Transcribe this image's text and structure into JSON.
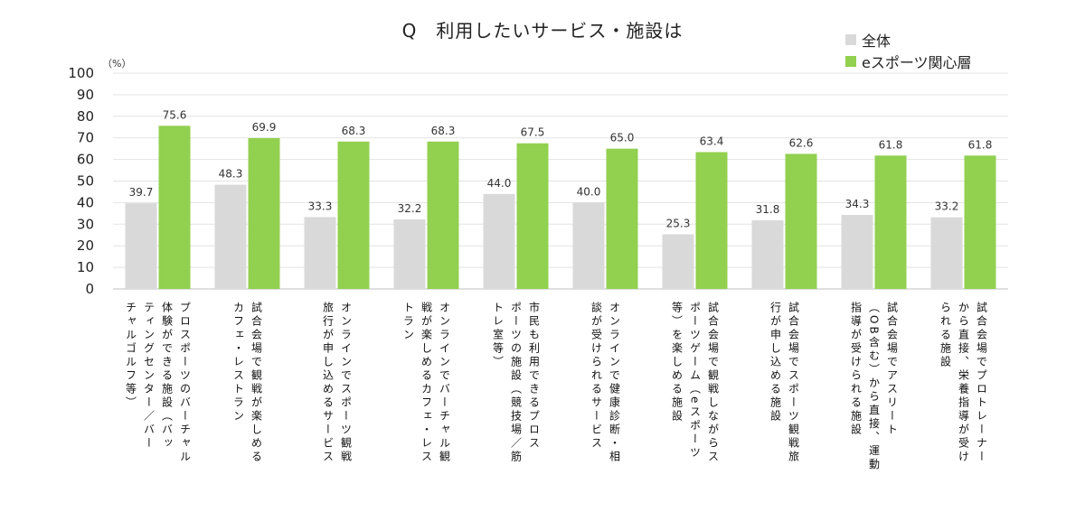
{
  "title": "Q　利用したいサービス・施設は",
  "unit": "（%）",
  "legend": [
    {
      "label": "全体",
      "color": "#d9d9d9"
    },
    {
      "label": "eスポーツ関心層",
      "color": "#92d050"
    }
  ],
  "chart_data": {
    "type": "bar",
    "title": "Q　利用したいサービス・施設は",
    "ylim": [
      0,
      100
    ],
    "yticks": [
      0,
      10,
      20,
      30,
      40,
      50,
      60,
      70,
      80,
      90,
      100
    ],
    "grid": true,
    "legend_position": "top-right",
    "categories": [
      "プロスポーツのバーチャル\n体験ができる施設（バッ\nティングセンター／バー\nチャルゴルフ等）",
      "試合会場で観戦が楽しめる\nカフェ・レストラン",
      "オンラインでスポーツ観戦\n旅行が申し込めるサービス",
      "オンラインでバーチャル観\n戦が楽しめるカフェ・レス\nトラン",
      "市民も利用できるプロス\nポーツの施設（競技場／筋\nトレ室等）",
      "オンラインで健康診断・相\n談が受けられるサービス",
      "試合会場で観戦しながらス\nポーツゲーム（eスポーツ\n等）を楽しめる施設",
      "試合会場でスポーツ観戦旅\n行が申し込める施設",
      "試合会場でアスリート\n（OB含む）から直接、運動\n指導が受けられる施設",
      "試合会場でプロトレーナー\nから直接、栄養指導が受け\nられる施設"
    ],
    "series": [
      {
        "name": "全体",
        "color": "#d9d9d9",
        "values": [
          39.7,
          48.3,
          33.3,
          32.2,
          44.0,
          40.0,
          25.3,
          31.8,
          34.3,
          33.2
        ],
        "labels": [
          "39.7",
          "48.3",
          "33.3",
          "32.2",
          "44.0",
          "40.0",
          "25.3",
          "31.8",
          "34.3",
          "33.2"
        ]
      },
      {
        "name": "eスポーツ関心層",
        "color": "#92d050",
        "values": [
          75.6,
          69.9,
          68.3,
          68.3,
          67.5,
          65.0,
          63.4,
          62.6,
          61.8,
          61.8
        ],
        "labels": [
          "75.6",
          "69.9",
          "68.3",
          "68.3",
          "67.5",
          "65.0",
          "63.4",
          "62.6",
          "61.8",
          "61.8"
        ]
      }
    ]
  }
}
